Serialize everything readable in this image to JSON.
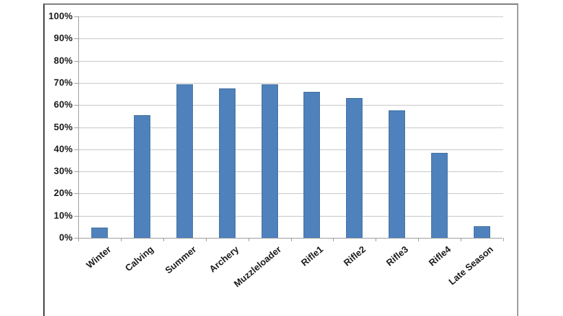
{
  "chart_data": {
    "type": "bar",
    "title": "",
    "xlabel": "",
    "ylabel": "",
    "categories": [
      "Winter",
      "Calving",
      "Summer",
      "Archery",
      "Muzzleloader",
      "Rifle1",
      "Rifle2",
      "Rifle3",
      "Rifle4",
      "Late Season"
    ],
    "values": [
      4.7,
      55.3,
      69.5,
      67.4,
      69.5,
      66.0,
      63.2,
      57.7,
      38.5,
      5.3
    ],
    "y_tick_labels": [
      "0%",
      "10%",
      "20%",
      "30%",
      "40%",
      "50%",
      "60%",
      "70%",
      "80%",
      "90%",
      "100%"
    ],
    "ylim": [
      0,
      100
    ],
    "y_tick_step": 10,
    "grid": true,
    "legend": false,
    "x_label_rotation_deg": -40
  },
  "colors": {
    "bar_fill": "#4f81bd",
    "bar_border": "#41719c",
    "gridline": "#c6c6c6",
    "axis": "#9b9b9b",
    "tick": "#9b9b9b",
    "label_text": "#1a1a1a",
    "plot_background": "#ffffff",
    "page_background": "#ffffff",
    "frame_border_left": "#3f3f3f",
    "frame_border_top": "#7d7d7d",
    "frame_border_right": "#9d9d9d"
  }
}
